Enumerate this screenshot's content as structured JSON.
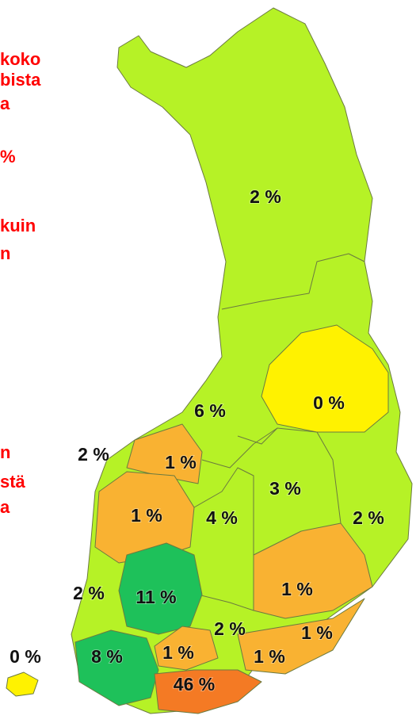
{
  "side_text": [
    "koko",
    "bista",
    "a",
    "%",
    "kuin",
    "n",
    "n",
    "stä",
    "a"
  ],
  "regions": [
    {
      "label": "2 %"
    },
    {
      "label": "0 %"
    },
    {
      "label": "6 %"
    },
    {
      "label": "2 %"
    },
    {
      "label": "1 %"
    },
    {
      "label": "3 %"
    },
    {
      "label": "2 %"
    },
    {
      "label": "1 %"
    },
    {
      "label": "4 %"
    },
    {
      "label": "1 %"
    },
    {
      "label": "2 %"
    },
    {
      "label": "11 %"
    },
    {
      "label": "2 %"
    },
    {
      "label": "1 %"
    },
    {
      "label": "0 %"
    },
    {
      "label": "8 %"
    },
    {
      "label": "1 %"
    },
    {
      "label": "1 %"
    },
    {
      "label": "46 %"
    }
  ]
}
